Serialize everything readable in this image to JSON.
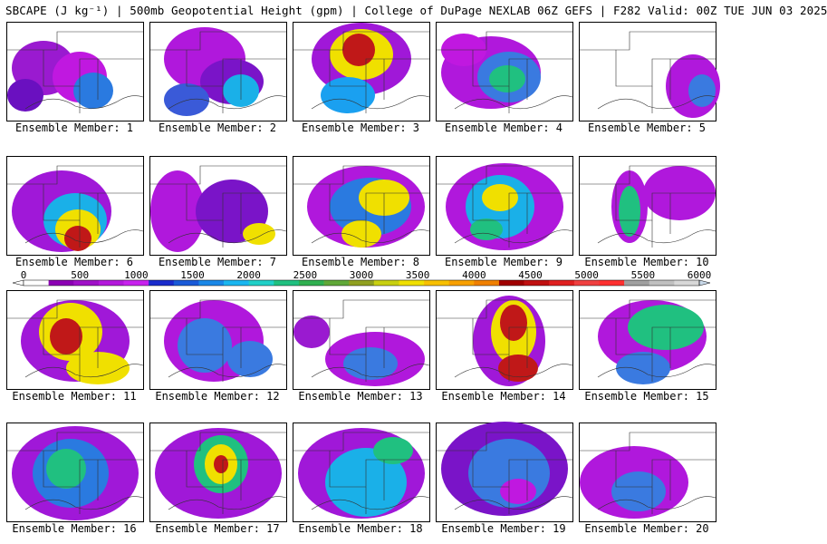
{
  "title": "SBCAPE (J kg⁻¹) | 500mb Geopotential Height (gpm) | College of DuPage NEXLAB 06Z GEFS | F282 Valid: 00Z TUE JUN 03 2025",
  "panel_label_prefix": "Ensemble Member: ",
  "members": [
    {
      "id": "1",
      "blobs": [
        [
          40,
          50,
          35,
          30,
          "#9a1ad0"
        ],
        [
          80,
          60,
          30,
          28,
          "#c018e0"
        ],
        [
          95,
          75,
          22,
          20,
          "#2a7ae0"
        ],
        [
          20,
          80,
          20,
          18,
          "#6a10c0"
        ]
      ]
    },
    {
      "id": "2",
      "blobs": [
        [
          60,
          40,
          45,
          35,
          "#b018dc"
        ],
        [
          90,
          65,
          35,
          25,
          "#7a14c8"
        ],
        [
          100,
          75,
          20,
          18,
          "#1ab0e8"
        ],
        [
          40,
          85,
          25,
          18,
          "#3a5ad8"
        ]
      ]
    },
    {
      "id": "3",
      "blobs": [
        [
          75,
          40,
          55,
          40,
          "#a018d8"
        ],
        [
          75,
          35,
          35,
          28,
          "#f0e000"
        ],
        [
          72,
          30,
          18,
          18,
          "#c01818"
        ],
        [
          60,
          80,
          30,
          20,
          "#1aa0f0"
        ]
      ]
    },
    {
      "id": "4",
      "blobs": [
        [
          60,
          55,
          55,
          40,
          "#b018dc"
        ],
        [
          80,
          60,
          35,
          28,
          "#3a7ae0"
        ],
        [
          78,
          62,
          20,
          15,
          "#20c080"
        ],
        [
          30,
          30,
          25,
          18,
          "#c018e0"
        ]
      ]
    },
    {
      "id": "5",
      "blobs": [
        [
          125,
          70,
          30,
          35,
          "#b018dc"
        ],
        [
          135,
          75,
          15,
          18,
          "#3a7ae0"
        ]
      ]
    },
    {
      "id": "6",
      "blobs": [
        [
          60,
          60,
          55,
          45,
          "#a018d8"
        ],
        [
          75,
          70,
          35,
          30,
          "#1ab0e8"
        ],
        [
          78,
          80,
          25,
          22,
          "#f0e000"
        ],
        [
          78,
          90,
          15,
          14,
          "#c01818"
        ]
      ]
    },
    {
      "id": "7",
      "blobs": [
        [
          30,
          60,
          30,
          45,
          "#b018dc"
        ],
        [
          90,
          60,
          40,
          35,
          "#7a14c8"
        ],
        [
          120,
          85,
          18,
          12,
          "#f0e000"
        ]
      ]
    },
    {
      "id": "8",
      "blobs": [
        [
          80,
          55,
          65,
          45,
          "#b018dc"
        ],
        [
          85,
          55,
          45,
          32,
          "#2a7ae0"
        ],
        [
          100,
          45,
          28,
          20,
          "#f0e000"
        ],
        [
          75,
          85,
          22,
          15,
          "#f0e000"
        ]
      ]
    },
    {
      "id": "9",
      "blobs": [
        [
          75,
          55,
          65,
          48,
          "#b018dc"
        ],
        [
          70,
          55,
          38,
          35,
          "#1ab0e8"
        ],
        [
          70,
          45,
          20,
          15,
          "#f0e000"
        ],
        [
          55,
          80,
          18,
          12,
          "#20c080"
        ]
      ]
    },
    {
      "id": "10",
      "blobs": [
        [
          110,
          40,
          40,
          30,
          "#b018dc"
        ],
        [
          55,
          55,
          20,
          40,
          "#b018dc"
        ],
        [
          55,
          60,
          12,
          28,
          "#20c080"
        ]
      ]
    },
    {
      "id": "11",
      "blobs": [
        [
          75,
          55,
          60,
          45,
          "#a018d8"
        ],
        [
          70,
          45,
          35,
          32,
          "#f0e000"
        ],
        [
          65,
          50,
          18,
          20,
          "#c01818"
        ],
        [
          100,
          85,
          35,
          18,
          "#f0e000"
        ]
      ]
    },
    {
      "id": "12",
      "blobs": [
        [
          70,
          55,
          55,
          45,
          "#b018dc"
        ],
        [
          60,
          60,
          30,
          30,
          "#3a7ae0"
        ],
        [
          110,
          75,
          25,
          20,
          "#3a7ae0"
        ]
      ]
    },
    {
      "id": "13",
      "blobs": [
        [
          90,
          75,
          55,
          30,
          "#b018dc"
        ],
        [
          85,
          80,
          30,
          18,
          "#3a7ae0"
        ],
        [
          20,
          45,
          20,
          18,
          "#9a1ad0"
        ]
      ]
    },
    {
      "id": "14",
      "blobs": [
        [
          80,
          55,
          40,
          50,
          "#a018d8"
        ],
        [
          85,
          45,
          25,
          35,
          "#f0e000"
        ],
        [
          85,
          35,
          15,
          20,
          "#c01818"
        ],
        [
          90,
          85,
          22,
          15,
          "#c01818"
        ]
      ]
    },
    {
      "id": "15",
      "blobs": [
        [
          80,
          50,
          60,
          40,
          "#b018dc"
        ],
        [
          95,
          40,
          42,
          25,
          "#20c080"
        ],
        [
          70,
          85,
          30,
          18,
          "#3a7ae0"
        ]
      ]
    },
    {
      "id": "16",
      "blobs": [
        [
          75,
          55,
          70,
          52,
          "#a018d8"
        ],
        [
          70,
          55,
          42,
          38,
          "#2a7ae0"
        ],
        [
          65,
          50,
          22,
          22,
          "#20c080"
        ]
      ]
    },
    {
      "id": "17",
      "blobs": [
        [
          75,
          55,
          70,
          50,
          "#a018d8"
        ],
        [
          78,
          45,
          30,
          32,
          "#20c080"
        ],
        [
          78,
          45,
          18,
          22,
          "#f0e000"
        ],
        [
          78,
          45,
          8,
          10,
          "#c01818"
        ]
      ]
    },
    {
      "id": "18",
      "blobs": [
        [
          75,
          55,
          70,
          50,
          "#a018d8"
        ],
        [
          80,
          65,
          45,
          38,
          "#1ab0e8"
        ],
        [
          110,
          30,
          22,
          15,
          "#20c080"
        ]
      ]
    },
    {
      "id": "19",
      "blobs": [
        [
          75,
          50,
          70,
          52,
          "#7a14c8"
        ],
        [
          80,
          55,
          45,
          38,
          "#3a7ae0"
        ],
        [
          90,
          75,
          20,
          14,
          "#c018e0"
        ]
      ]
    },
    {
      "id": "20",
      "blobs": [
        [
          60,
          65,
          60,
          40,
          "#b018dc"
        ],
        [
          65,
          75,
          30,
          22,
          "#3a7ae0"
        ]
      ]
    }
  ],
  "colorbar": {
    "ticks": [
      "0",
      "500",
      "1000",
      "1500",
      "2000",
      "2500",
      "3000",
      "3500",
      "4000",
      "4500",
      "5000",
      "5500",
      "6000"
    ],
    "colors": [
      "#ffffff",
      "#8c00b4",
      "#a010c8",
      "#b418dc",
      "#c822ee",
      "#1a2ccc",
      "#1a5ad8",
      "#1a88e8",
      "#1ab6f0",
      "#20d0c8",
      "#20c080",
      "#30b050",
      "#60a838",
      "#90a020",
      "#c8d010",
      "#f0e000",
      "#f8c000",
      "#f8a000",
      "#f08000",
      "#a00000",
      "#c01010",
      "#e02020",
      "#f04040",
      "#ff3030",
      "#a0a0a0",
      "#c0c0c0",
      "#d8d8d8"
    ]
  }
}
